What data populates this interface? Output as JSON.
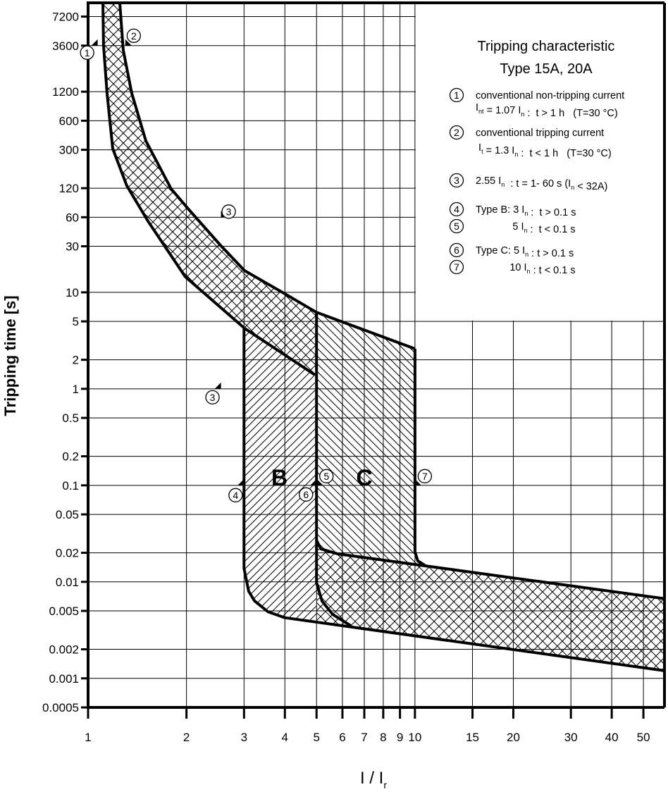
{
  "chart_data": {
    "type": "area",
    "title": "Tripping characteristic",
    "subtitle": "Type 15A, 20A",
    "xlabel": {
      "main": "I / I",
      "sub": "r"
    },
    "ylabel": "Tripping time [s]",
    "xscale": "log",
    "yscale": "log",
    "xlim": [
      1,
      58
    ],
    "ylim": [
      0.0005,
      10000
    ],
    "grid": true,
    "x_ticks": [
      1,
      2,
      3,
      4,
      5,
      6,
      7,
      8,
      9,
      10,
      15,
      20,
      30,
      40,
      50
    ],
    "x_tick_labels": [
      "1",
      "2",
      "3",
      "4",
      "5",
      "6",
      "7",
      "8",
      "9",
      "10",
      "15",
      "20",
      "30",
      "40",
      "50"
    ],
    "y_ticks": [
      0.0005,
      0.001,
      0.002,
      0.005,
      0.01,
      0.02,
      0.05,
      0.1,
      0.2,
      0.5,
      1,
      2,
      5,
      10,
      30,
      60,
      120,
      300,
      600,
      1200,
      3600,
      7200
    ],
    "y_tick_labels": [
      "0.0005",
      "0.001",
      "0.002",
      "0.005",
      "0.01",
      "0.02",
      "0.05",
      "0.1",
      "0.2",
      "0.5",
      "1",
      "2",
      "5",
      "10",
      "30",
      "60",
      "120",
      "300",
      "600",
      "1200",
      "3600",
      "7200"
    ],
    "curves": {
      "thermal_lower": [
        [
          1.11,
          10000
        ],
        [
          1.115,
          3650
        ],
        [
          1.143,
          1163
        ],
        [
          1.19,
          308
        ],
        [
          1.314,
          127
        ],
        [
          1.525,
          54.6
        ],
        [
          1.983,
          14.5
        ],
        [
          3.01,
          4.24
        ],
        [
          4.94,
          1.4
        ]
      ],
      "thermal_upper": [
        [
          1.25,
          10000
        ],
        [
          1.281,
          3240
        ],
        [
          1.36,
          1163
        ],
        [
          1.502,
          371
        ],
        [
          1.795,
          118
        ],
        [
          2.02,
          74
        ],
        [
          2.54,
          30.8
        ],
        [
          3.01,
          16.8
        ],
        [
          3.97,
          9.8
        ],
        [
          5.0,
          6.2
        ],
        [
          10,
          2.6
        ]
      ],
      "type_b_left": [
        [
          3,
          4.24
        ],
        [
          3,
          0.0138
        ],
        [
          3.1,
          0.008
        ],
        [
          3.23,
          0.00635
        ],
        [
          3.55,
          0.0049
        ],
        [
          4.0,
          0.00425
        ]
      ],
      "bottom_lower": [
        [
          4.0,
          0.00425
        ],
        [
          58,
          0.0012
        ]
      ],
      "type_c_left": [
        [
          5,
          6.2
        ],
        [
          5,
          0.0098
        ],
        [
          5.2,
          0.0063
        ],
        [
          5.6,
          0.0046
        ],
        [
          6.37,
          0.0035
        ]
      ],
      "type_c_inner": [
        [
          5,
          0.027
        ],
        [
          5.15,
          0.022
        ],
        [
          5.8,
          0.0195
        ],
        [
          58,
          0.0067
        ]
      ],
      "type_c_right": [
        [
          10,
          2.6
        ],
        [
          10,
          0.0205
        ],
        [
          10.2,
          0.0165
        ],
        [
          10.8,
          0.0146
        ]
      ]
    },
    "regions": [
      {
        "name": "thermal band",
        "hatch": "cross"
      },
      {
        "name": "B",
        "hatch": "forward"
      },
      {
        "name": "C",
        "hatch": "backward"
      },
      {
        "name": "instantaneous band",
        "hatch": "cross"
      }
    ],
    "region_labels": [
      {
        "text": "B",
        "I": 3.85,
        "t": 0.12
      },
      {
        "text": "C",
        "I": 7.0,
        "t": 0.12
      }
    ],
    "markers": [
      {
        "n": "1",
        "I": 1.07,
        "t": 3600
      },
      {
        "n": "2",
        "I": 1.3,
        "t": 3600
      },
      {
        "n": "3",
        "I": 2.55,
        "t": 60
      },
      {
        "n": "3",
        "I": 2.55,
        "t": 1
      },
      {
        "n": "4",
        "I": 3,
        "t": 0.1
      },
      {
        "n": "5",
        "I": 5,
        "t": 0.1
      },
      {
        "n": "6",
        "I": 5,
        "t": 0.1
      },
      {
        "n": "7",
        "I": 10,
        "t": 0.1
      }
    ],
    "legend": [
      {
        "n": "1",
        "lines": [
          [
            {
              "t": "conventional non-tripping current"
            }
          ],
          [
            {
              "t": "I"
            },
            {
              "t": "nt",
              "sub": true
            },
            {
              "t": " = 1.07 I"
            },
            {
              "t": "n",
              "sub": true
            },
            {
              "t": " :  t > 1 h   (T=30 °C)"
            }
          ]
        ]
      },
      {
        "n": "2",
        "lines": [
          [
            {
              "t": "conventional tripping current"
            }
          ],
          [
            {
              "t": " I"
            },
            {
              "t": "t",
              "sub": true
            },
            {
              "t": " = 1.3 I"
            },
            {
              "t": "n",
              "sub": true
            },
            {
              "t": " :  t < 1 h   (T=30 °C)"
            }
          ]
        ]
      },
      {
        "n": "3",
        "lines": [
          [
            {
              "t": "2.55 I"
            },
            {
              "t": "n",
              "sub": true
            },
            {
              "t": "  : t = 1- 60 s (I"
            },
            {
              "t": "n",
              "sub": true
            },
            {
              "t": " < 32A)"
            }
          ]
        ]
      },
      {
        "n": "4",
        "lines": [
          [
            {
              "t": "Type B: 3 I"
            },
            {
              "t": "n",
              "sub": true
            },
            {
              "t": " :  t > 0.1 s"
            }
          ]
        ]
      },
      {
        "n": "5",
        "lines": [
          [
            {
              "t": "             5 I"
            },
            {
              "t": "n",
              "sub": true
            },
            {
              "t": " :  t < 0.1 s"
            }
          ]
        ]
      },
      {
        "n": "6",
        "lines": [
          [
            {
              "t": "Type C: 5 I"
            },
            {
              "t": "n",
              "sub": true
            },
            {
              "t": " : t > 0.1 s"
            }
          ]
        ]
      },
      {
        "n": "7",
        "lines": [
          [
            {
              "t": "            10 I"
            },
            {
              "t": "n",
              "sub": true
            },
            {
              "t": " : t < 0.1 s"
            }
          ]
        ]
      }
    ],
    "colors": {
      "ink": "#000000",
      "background": "#ffffff"
    }
  }
}
